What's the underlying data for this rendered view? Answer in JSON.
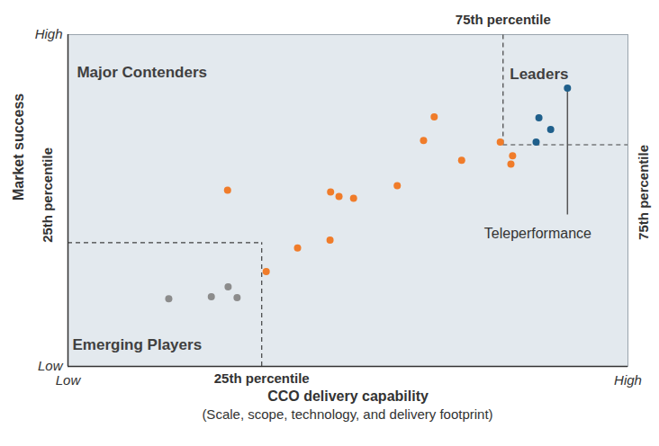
{
  "chart_data": {
    "type": "scatter",
    "x_label": "CCO delivery capability",
    "y_label": "Market success",
    "subtitle": "(Scale, scope, technology, and delivery footprint)",
    "xlim": [
      0,
      100
    ],
    "ylim": [
      0,
      100
    ],
    "xticks": [
      {
        "value": 0,
        "label": "Low"
      },
      {
        "value": 100,
        "label": "High"
      }
    ],
    "yticks": [
      {
        "value": 0,
        "label": "Low"
      },
      {
        "value": 100,
        "label": "High"
      }
    ],
    "x_percentiles": [
      {
        "value": 34.6,
        "label": "25th percentile"
      },
      {
        "value": 77.7,
        "label": "75th percentile"
      }
    ],
    "y_percentiles": [
      {
        "value": 37.3,
        "label": "25th percentile"
      },
      {
        "value": 66.8,
        "label": "75th percentile"
      }
    ],
    "regions": [
      {
        "text": "Major Contenders",
        "x": 1.6,
        "y": 88.6
      },
      {
        "text": "Leaders",
        "x": 78.9,
        "y": 88.0
      },
      {
        "text": "Emerging Players",
        "x": 0.8,
        "y": 6.5
      }
    ],
    "annotations": [
      {
        "text": "Teleperformance",
        "x": 83.9,
        "y": 40.0,
        "arrow_from": [
          89.2,
          83.9
        ],
        "arrow_to": [
          89.2,
          45.8
        ]
      }
    ],
    "series": [
      {
        "color": "#f07c2a",
        "values": [
          [
            28.5,
            53.1
          ],
          [
            46.9,
            52.6
          ],
          [
            48.4,
            51.2
          ],
          [
            51.0,
            50.7
          ],
          [
            65.4,
            75.2
          ],
          [
            63.5,
            68.1
          ],
          [
            58.8,
            54.5
          ],
          [
            46.8,
            38.1
          ],
          [
            41.0,
            35.7
          ],
          [
            35.4,
            28.6
          ],
          [
            70.3,
            62.1
          ],
          [
            77.2,
            67.6
          ],
          [
            79.4,
            63.5
          ],
          [
            79.1,
            61.0
          ]
        ]
      },
      {
        "color": "#1f5f8b",
        "values": [
          [
            89.2,
            83.9
          ],
          [
            84.1,
            74.9
          ],
          [
            86.2,
            71.4
          ],
          [
            83.6,
            67.6
          ]
        ]
      },
      {
        "color": "#8c8c8c",
        "values": [
          [
            18.0,
            20.4
          ],
          [
            25.6,
            21.0
          ],
          [
            28.6,
            24.0
          ],
          [
            30.2,
            20.7
          ]
        ]
      }
    ]
  }
}
